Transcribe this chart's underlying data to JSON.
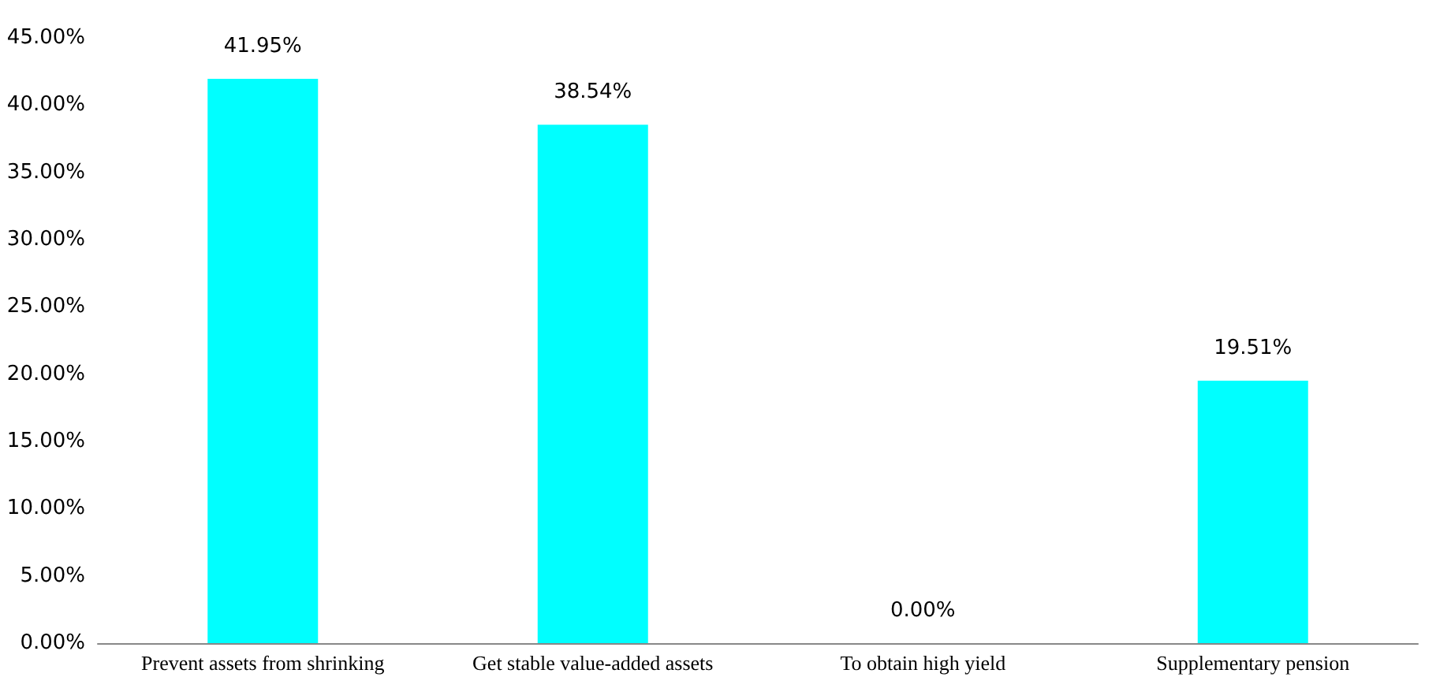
{
  "chart_data": {
    "type": "bar",
    "categories": [
      "Prevent assets from shrinking",
      "Get stable value-added assets",
      "To obtain high yield",
      "Supplementary pension"
    ],
    "values": [
      41.95,
      38.54,
      0,
      19.51
    ],
    "value_labels": [
      "41.95%",
      "38.54%",
      "0.00%",
      "19.51%"
    ],
    "color": "#00ffff",
    "ylim": [
      0,
      45
    ],
    "yticks": [
      {
        "value": 0,
        "label": "0.00%"
      },
      {
        "value": 5,
        "label": "5.00%"
      },
      {
        "value": 10,
        "label": "10.00%"
      },
      {
        "value": 15,
        "label": "15.00%"
      },
      {
        "value": 20,
        "label": "20.00%"
      },
      {
        "value": 25,
        "label": "25.00%"
      },
      {
        "value": 30,
        "label": "30.00%"
      },
      {
        "value": 35,
        "label": "35.00%"
      },
      {
        "value": 40,
        "label": "40.00%"
      },
      {
        "value": 45,
        "label": "45.00%"
      }
    ],
    "grid": false
  }
}
